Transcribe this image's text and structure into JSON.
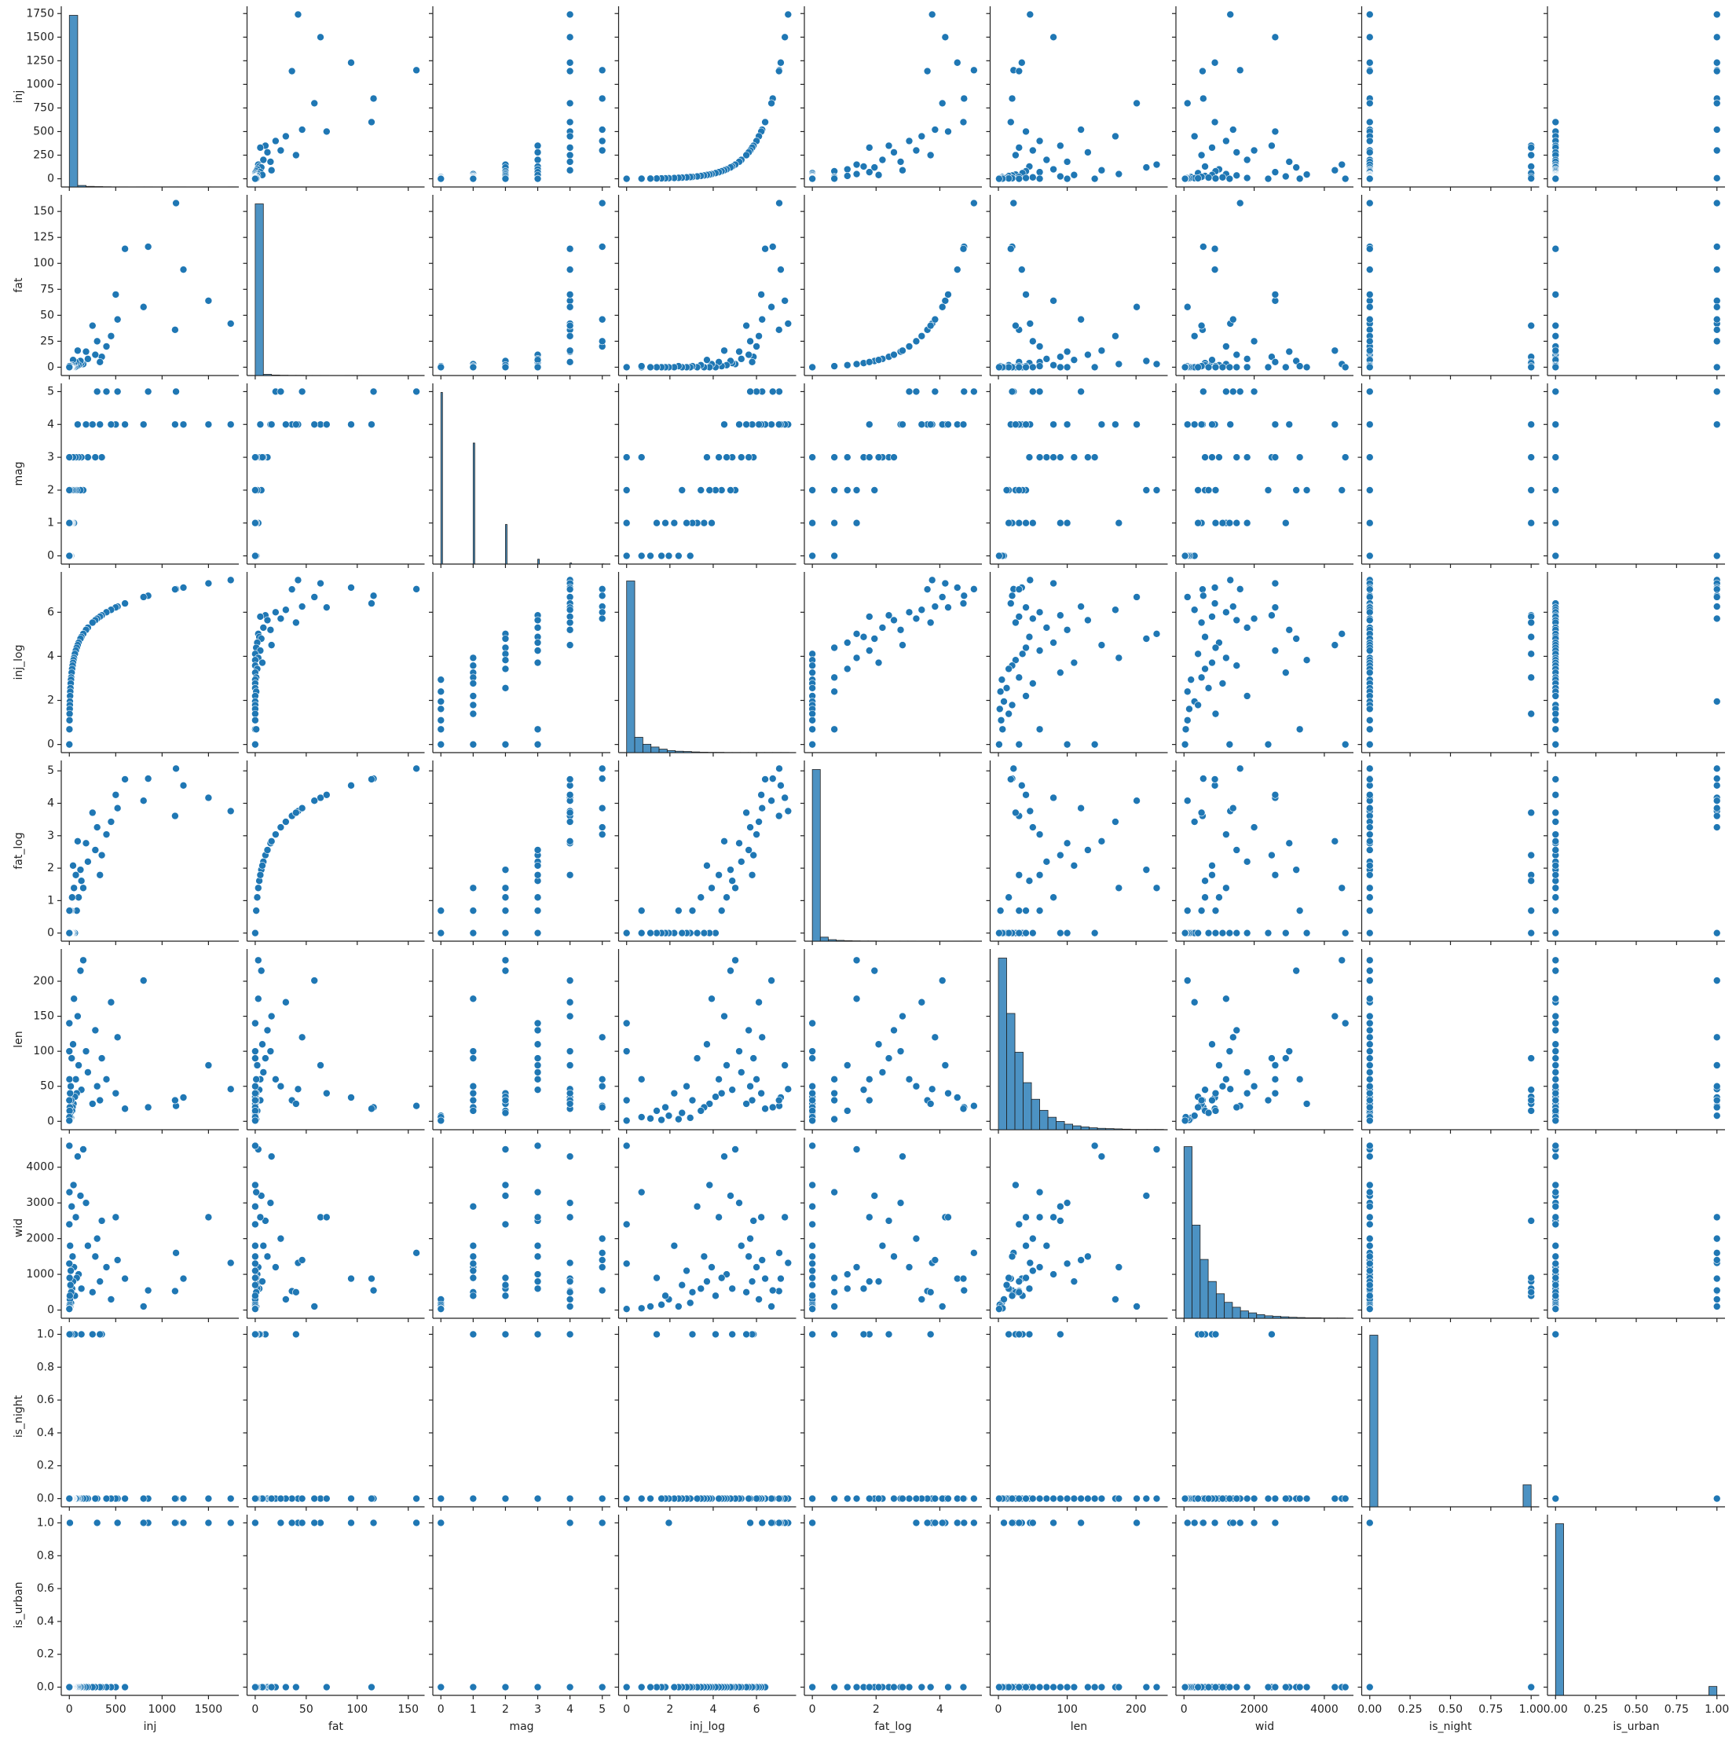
{
  "chart_data": {
    "type": "pairplot",
    "color": "#1f77b4",
    "variables": [
      {
        "name": "inj",
        "lim": [
          -87,
          1827
        ],
        "xticks": [
          0,
          500,
          1000,
          1500
        ],
        "yticks": [
          0,
          250,
          500,
          750,
          1000,
          1250,
          1500,
          1750
        ],
        "bins": [
          0,
          90,
          180,
          270,
          360,
          450,
          540,
          630,
          720,
          810,
          900,
          990,
          1080,
          1170,
          1260,
          1350,
          1440,
          1530,
          1620,
          1710,
          1800
        ],
        "counts": [
          1720,
          15,
          6,
          4,
          2,
          1,
          1,
          0,
          1,
          1,
          0,
          0,
          1,
          1,
          0,
          0,
          1,
          0,
          0,
          1
        ]
      },
      {
        "name": "fat",
        "lim": [
          -8,
          166
        ],
        "xticks": [
          0,
          50,
          100,
          150
        ],
        "yticks": [
          0,
          25,
          50,
          75,
          100,
          125,
          150
        ],
        "bins": [
          0,
          8,
          16,
          24,
          32,
          40,
          48,
          56,
          64,
          72,
          80,
          88,
          96,
          104,
          112,
          120,
          128,
          136,
          144,
          152,
          160
        ],
        "counts": [
          1740,
          12,
          5,
          3,
          2,
          2,
          1,
          1,
          1,
          0,
          0,
          1,
          1,
          1,
          0,
          0,
          0,
          0,
          0,
          1
        ]
      },
      {
        "name": "mag",
        "lim": [
          -0.25,
          5.25
        ],
        "xticks": [
          0,
          1,
          2,
          3,
          4,
          5
        ],
        "yticks": [
          0,
          1,
          2,
          3,
          4,
          5
        ],
        "bins": [
          0,
          0.05,
          1,
          1.05,
          2,
          2.05,
          3,
          3.05,
          4,
          4.05,
          5,
          5.05
        ],
        "counts": [
          780,
          0,
          550,
          0,
          180,
          0,
          22,
          0,
          5,
          0,
          1
        ]
      },
      {
        "name": "inj_log",
        "lim": [
          -0.37,
          7.83
        ],
        "xticks": [
          0,
          2,
          4,
          6
        ],
        "yticks": [
          0,
          2,
          4,
          6
        ],
        "bins": [
          0,
          0.375,
          0.75,
          1.125,
          1.5,
          1.875,
          2.25,
          2.625,
          3,
          3.375,
          3.75,
          4.125,
          4.5,
          4.875,
          5.25,
          5.625,
          6,
          6.375,
          6.75,
          7.125,
          7.5
        ],
        "counts": [
          1230,
          110,
          60,
          40,
          25,
          15,
          10,
          8,
          5,
          3,
          2,
          2,
          1,
          1,
          1,
          1,
          1,
          1,
          1,
          1
        ]
      },
      {
        "name": "fat_log",
        "lim": [
          -0.25,
          5.32
        ],
        "xticks": [
          0,
          2,
          4
        ],
        "yticks": [
          0,
          1,
          2,
          3,
          4,
          5
        ],
        "bins": [
          0,
          0.25,
          0.5,
          0.75,
          1,
          1.25,
          1.5,
          1.75,
          2,
          2.25,
          2.5,
          2.75,
          3,
          3.25,
          3.5,
          3.75,
          4,
          4.25,
          4.5,
          4.75,
          5
        ],
        "counts": [
          1700,
          40,
          15,
          8,
          5,
          3,
          2,
          2,
          1,
          1,
          1,
          1,
          1,
          0,
          0,
          0,
          0,
          0,
          0,
          1
        ]
      },
      {
        "name": "len",
        "lim": [
          -12,
          246
        ],
        "xticks": [
          0,
          100,
          200
        ],
        "yticks": [
          0,
          50,
          100,
          150,
          200
        ],
        "bins": [
          0,
          12,
          24,
          36,
          48,
          60,
          72,
          84,
          96,
          108,
          120,
          132,
          144,
          156,
          168,
          180,
          192,
          204,
          216,
          228,
          240
        ],
        "counts": [
          620,
          420,
          280,
          170,
          110,
          70,
          45,
          30,
          20,
          14,
          10,
          7,
          5,
          4,
          3,
          2,
          1,
          1,
          1,
          1
        ]
      },
      {
        "name": "wid",
        "lim": [
          -230,
          4830
        ],
        "xticks": [
          0,
          2000,
          4000
        ],
        "yticks": [
          0,
          1000,
          2000,
          3000,
          4000
        ],
        "bins": [
          0,
          230,
          460,
          690,
          920,
          1150,
          1380,
          1610,
          1840,
          2070,
          2300,
          2530,
          2760,
          2990,
          3220,
          3450,
          3680,
          3910,
          4140,
          4370,
          4600
        ],
        "counts": [
          700,
          380,
          240,
          150,
          100,
          65,
          45,
          30,
          22,
          15,
          10,
          8,
          6,
          4,
          3,
          2,
          2,
          1,
          1,
          1
        ]
      },
      {
        "name": "is_night",
        "lim": [
          -0.05,
          1.05
        ],
        "xticks": [
          {
            "value": 0,
            "label": "0.00"
          },
          {
            "value": 0.25,
            "label": "0.25"
          },
          {
            "value": 0.5,
            "label": "0.50"
          },
          {
            "value": 0.75,
            "label": "0.75"
          },
          {
            "value": 1,
            "label": "1.00"
          }
        ],
        "yticks": [
          {
            "value": 0,
            "label": "0.0"
          },
          {
            "value": 0.2,
            "label": "0.2"
          },
          {
            "value": 0.4,
            "label": "0.4"
          },
          {
            "value": 0.6,
            "label": "0.6"
          },
          {
            "value": 0.8,
            "label": "0.8"
          },
          {
            "value": 1,
            "label": "1.0"
          }
        ],
        "bins": [
          0,
          0.05,
          0.1,
          0.15,
          0.2,
          0.25,
          0.3,
          0.35,
          0.4,
          0.45,
          0.5,
          0.55,
          0.6,
          0.65,
          0.7,
          0.75,
          0.8,
          0.85,
          0.9,
          0.95,
          1
        ],
        "counts": [
          1480,
          0,
          0,
          0,
          0,
          0,
          0,
          0,
          0,
          0,
          0,
          0,
          0,
          0,
          0,
          0,
          0,
          0,
          0,
          190
        ]
      },
      {
        "name": "is_urban",
        "lim": [
          -0.05,
          1.05
        ],
        "xticks": [
          {
            "value": 0,
            "label": "0.00"
          },
          {
            "value": 0.25,
            "label": "0.25"
          },
          {
            "value": 0.5,
            "label": "0.50"
          },
          {
            "value": 0.75,
            "label": "0.75"
          },
          {
            "value": 1,
            "label": "1.00"
          }
        ],
        "yticks": [
          {
            "value": 0,
            "label": "0.0"
          },
          {
            "value": 0.2,
            "label": "0.2"
          },
          {
            "value": 0.4,
            "label": "0.4"
          },
          {
            "value": 0.6,
            "label": "0.6"
          },
          {
            "value": 0.8,
            "label": "0.8"
          },
          {
            "value": 1,
            "label": "1.0"
          }
        ],
        "bins": [
          0,
          0.05,
          0.1,
          0.15,
          0.2,
          0.25,
          0.3,
          0.35,
          0.4,
          0.45,
          0.5,
          0.55,
          0.6,
          0.65,
          0.7,
          0.75,
          0.8,
          0.85,
          0.9,
          0.95,
          1
        ],
        "counts": [
          1540,
          0,
          0,
          0,
          0,
          0,
          0,
          0,
          0,
          0,
          0,
          0,
          0,
          0,
          0,
          0,
          0,
          0,
          0,
          80
        ]
      }
    ],
    "rows": [
      [
        1740,
        42,
        4,
        7.46,
        3.76,
        46,
        1320,
        0,
        1
      ],
      [
        1500,
        64,
        4,
        7.31,
        4.17,
        80,
        2600,
        0,
        1
      ],
      [
        1230,
        94,
        4,
        7.12,
        4.55,
        34,
        880,
        0,
        1
      ],
      [
        1150,
        158,
        5,
        7.05,
        5.07,
        22,
        1600,
        0,
        1
      ],
      [
        1140,
        36,
        4,
        7.04,
        3.61,
        30,
        530,
        0,
        1
      ],
      [
        850,
        116,
        5,
        6.75,
        4.76,
        20,
        550,
        0,
        1
      ],
      [
        800,
        58,
        4,
        6.69,
        4.08,
        201,
        100,
        0,
        1
      ],
      [
        600,
        114,
        4,
        6.4,
        4.74,
        18,
        880,
        0,
        0
      ],
      [
        520,
        46,
        5,
        6.26,
        3.85,
        120,
        1400,
        0,
        1
      ],
      [
        500,
        70,
        4,
        6.22,
        4.26,
        40,
        2600,
        0,
        0
      ],
      [
        450,
        30,
        4,
        6.11,
        3.43,
        170,
        300,
        0,
        0
      ],
      [
        400,
        20,
        5,
        6.0,
        3.04,
        60,
        1200,
        0,
        0
      ],
      [
        350,
        10,
        3,
        5.86,
        2.4,
        90,
        2500,
        1,
        0
      ],
      [
        330,
        5,
        4,
        5.8,
        1.79,
        30,
        800,
        1,
        0
      ],
      [
        300,
        25,
        5,
        5.71,
        3.26,
        50,
        2000,
        0,
        1
      ],
      [
        280,
        12,
        3,
        5.64,
        2.56,
        130,
        1500,
        0,
        0
      ],
      [
        250,
        40,
        4,
        5.53,
        3.71,
        25,
        500,
        1,
        0
      ],
      [
        200,
        8,
        3,
        5.3,
        2.2,
        70,
        1800,
        0,
        0
      ],
      [
        180,
        15,
        4,
        5.2,
        2.77,
        100,
        3000,
        0,
        0
      ],
      [
        150,
        3,
        2,
        5.02,
        1.39,
        230,
        4500,
        0,
        0
      ],
      [
        130,
        4,
        3,
        4.88,
        1.61,
        45,
        600,
        1,
        0
      ],
      [
        120,
        6,
        2,
        4.8,
        1.95,
        215,
        3200,
        0,
        0
      ],
      [
        100,
        2,
        3,
        4.62,
        1.1,
        80,
        1000,
        0,
        0
      ],
      [
        90,
        16,
        4,
        4.51,
        2.83,
        150,
        4300,
        0,
        0
      ],
      [
        80,
        1,
        2,
        4.39,
        0.69,
        40,
        900,
        0,
        0
      ],
      [
        70,
        5,
        3,
        4.26,
        1.79,
        60,
        2600,
        0,
        0
      ],
      [
        60,
        0,
        2,
        4.11,
        0,
        35,
        400,
        1,
        0
      ],
      [
        50,
        3,
        1,
        3.93,
        1.39,
        175,
        1200,
        0,
        0
      ],
      [
        45,
        0,
        2,
        3.83,
        0,
        25,
        3500,
        0,
        0
      ],
      [
        40,
        7,
        3,
        3.71,
        2.08,
        110,
        800,
        0,
        0
      ],
      [
        35,
        0,
        1,
        3.58,
        0,
        20,
        1500,
        0,
        0
      ],
      [
        30,
        2,
        2,
        3.43,
        1.1,
        15,
        600,
        0,
        0
      ],
      [
        25,
        0,
        1,
        3.26,
        0,
        90,
        2900,
        0,
        0
      ],
      [
        20,
        1,
        1,
        3.04,
        0.69,
        30,
        500,
        1,
        0
      ],
      [
        18,
        0,
        0,
        2.94,
        0,
        5,
        200,
        0,
        0
      ],
      [
        15,
        0,
        1,
        2.77,
        0,
        50,
        1100,
        0,
        0
      ],
      [
        12,
        0,
        2,
        2.56,
        0,
        12,
        700,
        0,
        0
      ],
      [
        10,
        1,
        0,
        2.4,
        0.69,
        3,
        100,
        0,
        0
      ],
      [
        8,
        0,
        1,
        2.2,
        0,
        40,
        1800,
        0,
        0
      ],
      [
        6,
        0,
        0,
        1.95,
        0,
        8,
        300,
        0,
        1
      ],
      [
        5,
        0,
        1,
        1.79,
        0,
        20,
        400,
        0,
        0
      ],
      [
        4,
        0,
        0,
        1.61,
        0,
        2,
        150,
        0,
        0
      ],
      [
        3,
        0,
        1,
        1.39,
        0,
        15,
        900,
        1,
        0
      ],
      [
        2,
        0,
        0,
        1.1,
        0,
        4,
        100,
        0,
        0
      ],
      [
        1,
        0,
        0,
        0.69,
        0,
        6,
        50,
        0,
        0
      ],
      [
        0,
        0,
        0,
        0,
        0,
        1,
        30,
        0,
        0
      ],
      [
        0,
        0,
        1,
        0,
        0,
        100,
        1300,
        0,
        0
      ],
      [
        0,
        0,
        2,
        0,
        0,
        30,
        2400,
        0,
        0
      ],
      [
        1,
        1,
        3,
        0.69,
        0.69,
        60,
        3300,
        0,
        0
      ],
      [
        0,
        0,
        3,
        0,
        0,
        140,
        4600,
        0,
        0
      ]
    ]
  }
}
